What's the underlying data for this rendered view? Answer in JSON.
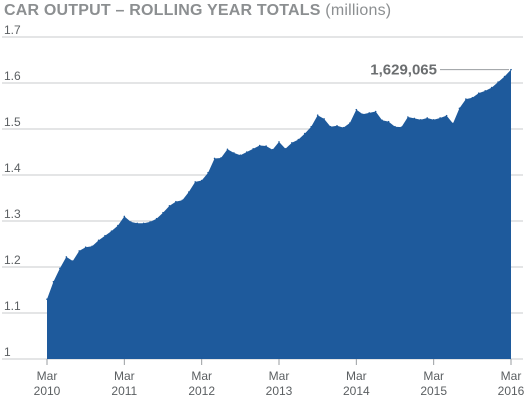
{
  "chart_data": {
    "type": "area",
    "title": "CAR OUTPUT – ROLLING YEAR TOTALS",
    "subtitle": "(millions)",
    "xlabel": "",
    "ylabel": "",
    "ylim": [
      1,
      1.7
    ],
    "y_ticks": [
      "1",
      "1.1",
      "1.2",
      "1.3",
      "1.4",
      "1.5",
      "1.6",
      "1.7"
    ],
    "x_ticks": [
      {
        "month": "Mar",
        "year": "2010",
        "index": 0
      },
      {
        "month": "Mar",
        "year": "2011",
        "index": 12
      },
      {
        "month": "Mar",
        "year": "2012",
        "index": 24
      },
      {
        "month": "Mar",
        "year": "2013",
        "index": 36
      },
      {
        "month": "Mar",
        "year": "2014",
        "index": 48
      },
      {
        "month": "Mar",
        "year": "2015",
        "index": 60
      },
      {
        "month": "Mar",
        "year": "2016",
        "index": 72
      }
    ],
    "grid": true,
    "color": "#1e5a9c",
    "x": [
      "Mar 2010",
      "Apr 2010",
      "May 2010",
      "Jun 2010",
      "Jul 2010",
      "Aug 2010",
      "Sep 2010",
      "Oct 2010",
      "Nov 2010",
      "Dec 2010",
      "Jan 2011",
      "Feb 2011",
      "Mar 2011",
      "Apr 2011",
      "May 2011",
      "Jun 2011",
      "Jul 2011",
      "Aug 2011",
      "Sep 2011",
      "Oct 2011",
      "Nov 2011",
      "Dec 2011",
      "Jan 2012",
      "Feb 2012",
      "Mar 2012",
      "Apr 2012",
      "May 2012",
      "Jun 2012",
      "Jul 2012",
      "Aug 2012",
      "Sep 2012",
      "Oct 2012",
      "Nov 2012",
      "Dec 2012",
      "Jan 2013",
      "Feb 2013",
      "Mar 2013",
      "Apr 2013",
      "May 2013",
      "Jun 2013",
      "Jul 2013",
      "Aug 2013",
      "Sep 2013",
      "Oct 2013",
      "Nov 2013",
      "Dec 2013",
      "Jan 2014",
      "Feb 2014",
      "Mar 2014",
      "Apr 2014",
      "May 2014",
      "Jun 2014",
      "Jul 2014",
      "Aug 2014",
      "Sep 2014",
      "Oct 2014",
      "Nov 2014",
      "Dec 2014",
      "Jan 2015",
      "Feb 2015",
      "Mar 2015",
      "Apr 2015",
      "May 2015",
      "Jun 2015",
      "Jul 2015",
      "Aug 2015",
      "Sep 2015",
      "Oct 2015",
      "Nov 2015",
      "Dec 2015",
      "Jan 2016",
      "Feb 2016",
      "Mar 2016"
    ],
    "values": [
      1.13,
      1.168,
      1.197,
      1.222,
      1.213,
      1.235,
      1.243,
      1.245,
      1.258,
      1.268,
      1.278,
      1.29,
      1.31,
      1.298,
      1.295,
      1.295,
      1.298,
      1.305,
      1.318,
      1.333,
      1.342,
      1.345,
      1.363,
      1.385,
      1.388,
      1.405,
      1.436,
      1.437,
      1.456,
      1.448,
      1.443,
      1.45,
      1.457,
      1.464,
      1.463,
      1.455,
      1.472,
      1.457,
      1.47,
      1.477,
      1.49,
      1.505,
      1.53,
      1.522,
      1.505,
      1.507,
      1.503,
      1.513,
      1.542,
      1.532,
      1.535,
      1.538,
      1.519,
      1.516,
      1.505,
      1.504,
      1.526,
      1.523,
      1.52,
      1.524,
      1.52,
      1.524,
      1.529,
      1.512,
      1.545,
      1.565,
      1.568,
      1.578,
      1.583,
      1.59,
      1.602,
      1.614,
      1.629
    ],
    "annotation": {
      "label": "1,629,065",
      "index": 72
    }
  }
}
